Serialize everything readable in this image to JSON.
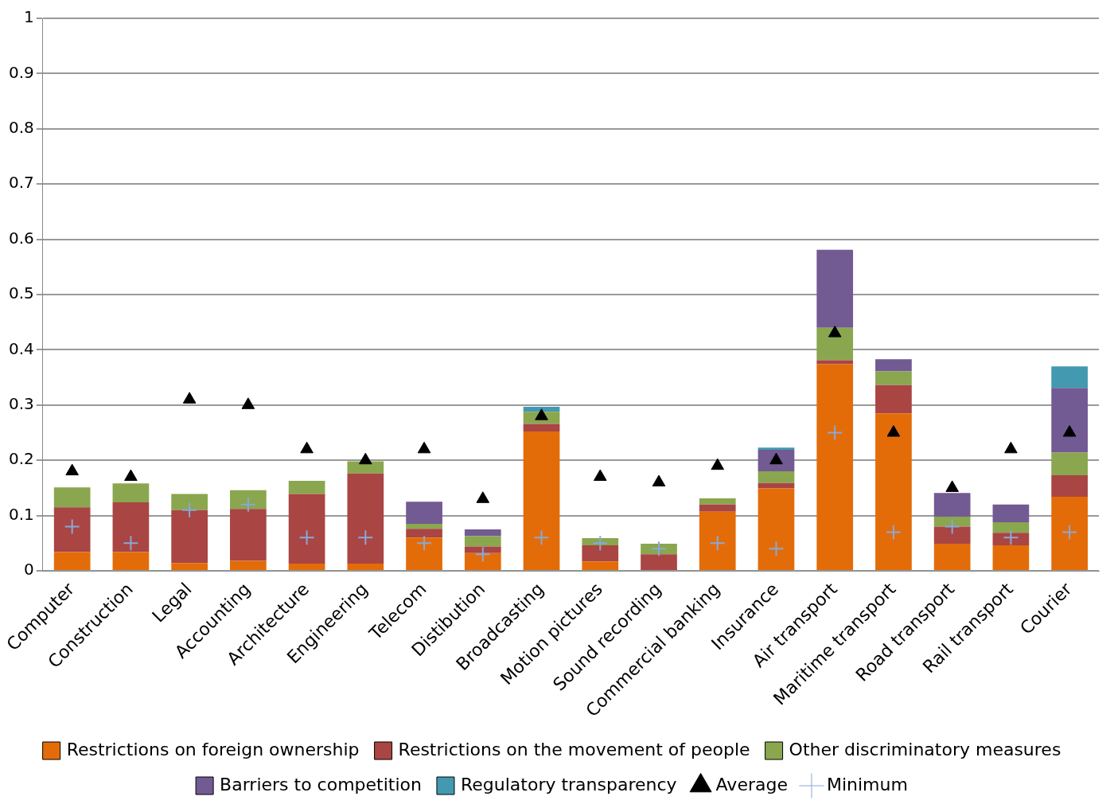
{
  "chart_data": {
    "type": "bar",
    "stacked": true,
    "categories": [
      "Computer",
      "Construction",
      "Legal",
      "Accounting",
      "Architecture",
      "Engineering",
      "Telecom",
      "Distibution",
      "Broadcasting",
      "Motion pictures",
      "Sound recording",
      "Commercial banking",
      "Insurance",
      "Air transport",
      "Maritime transport",
      "Road transport",
      "Rail transport",
      "Courier"
    ],
    "series": [
      {
        "name": "Restrictions on foreign ownership",
        "color": "#e36c09",
        "values": [
          0.034,
          0.034,
          0.014,
          0.018,
          0.013,
          0.013,
          0.06,
          0.032,
          0.252,
          0.017,
          0,
          0.107,
          0.149,
          0.374,
          0.285,
          0.049,
          0.046,
          0.134
        ]
      },
      {
        "name": "Restrictions on the movement of people",
        "color": "#a94543",
        "values": [
          0.081,
          0.09,
          0.096,
          0.094,
          0.126,
          0.163,
          0.016,
          0.012,
          0.014,
          0.029,
          0.03,
          0.013,
          0.01,
          0.007,
          0.051,
          0.031,
          0.023,
          0.039
        ]
      },
      {
        "name": "Other discriminatory measures",
        "color": "#8aa64f",
        "values": [
          0.036,
          0.034,
          0.029,
          0.034,
          0.024,
          0.022,
          0.009,
          0.019,
          0.022,
          0.013,
          0.019,
          0.011,
          0.021,
          0.059,
          0.025,
          0.018,
          0.019,
          0.041
        ]
      },
      {
        "name": "Barriers to competition",
        "color": "#725a93",
        "values": [
          0,
          0,
          0,
          0,
          0,
          0,
          0.04,
          0.012,
          0,
          0,
          0,
          0,
          0.039,
          0.141,
          0.022,
          0.043,
          0.032,
          0.117
        ]
      },
      {
        "name": "Regulatory transparency",
        "color": "#4299b0",
        "values": [
          0,
          0,
          0,
          0,
          0,
          0,
          0,
          0,
          0.009,
          0,
          0,
          0,
          0.004,
          0,
          0,
          0,
          0,
          0.039
        ]
      },
      {
        "name": "Average",
        "type": "scatter",
        "marker": "triangle",
        "color": "#000000",
        "values": [
          0.18,
          0.17,
          0.31,
          0.3,
          0.22,
          0.2,
          0.22,
          0.13,
          0.28,
          0.17,
          0.16,
          0.19,
          0.2,
          0.43,
          0.25,
          0.15,
          0.22,
          0.25
        ]
      },
      {
        "name": "Minimum",
        "type": "scatter",
        "marker": "cross",
        "color": "#8aa8d8",
        "values": [
          0.08,
          0.05,
          0.11,
          0.12,
          0.06,
          0.06,
          0.05,
          0.03,
          0.06,
          0.05,
          0.04,
          0.05,
          0.04,
          0.25,
          0.07,
          0.08,
          0.06,
          0.07
        ]
      }
    ],
    "ylim": [
      0,
      1
    ],
    "yticks": [
      0,
      0.1,
      0.2,
      0.3,
      0.4,
      0.5,
      0.6,
      0.7,
      0.8,
      0.9,
      1
    ],
    "grid": "y",
    "legend": "bottom"
  }
}
